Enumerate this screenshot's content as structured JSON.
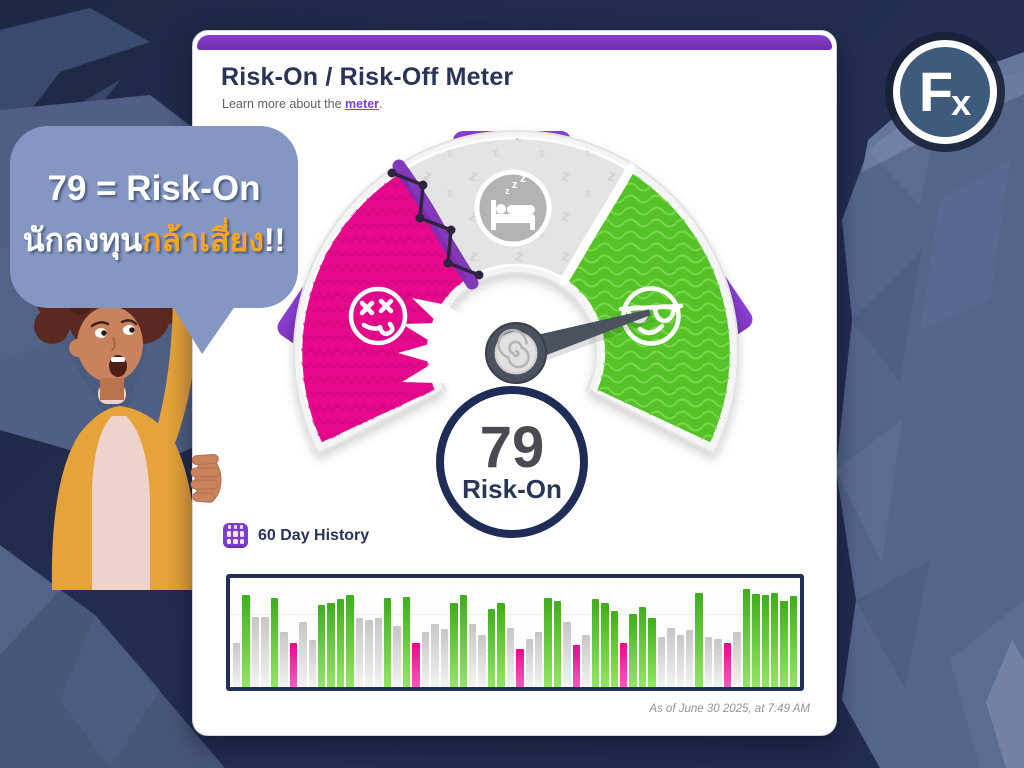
{
  "theme": {
    "background_navy": "#232e52",
    "accent_purple": "#7a35bd",
    "risk_off_pink": "#e7098c",
    "neutral_gray": "#e4e4e4",
    "risk_on_green": "#55c327",
    "circle_navy": "#1f2c55",
    "bubble_blue": "#8497c2",
    "bubble_orange": "#f5a623"
  },
  "logo": {
    "f": "F",
    "x": "x"
  },
  "bubble": {
    "line1": "79 = Risk-On",
    "line2_white": "นักลงทุน",
    "line2_orange": "กล้าเสี่ยง",
    "line2_suffix": "!!"
  },
  "card": {
    "title": "Risk-On / Risk-Off Meter",
    "subtitle_prefix": "Learn more about the ",
    "subtitle_link": "meter",
    "subtitle_suffix": ".",
    "footer": "As of June 30 2025, at 7:49 AM"
  },
  "gauge": {
    "value": 79,
    "state_label": "Risk-On",
    "min": 0,
    "max": 100,
    "z_glyph": "z",
    "segments": [
      {
        "label": "Risk-Off",
        "color": "#e7098c"
      },
      {
        "label": "Neutral",
        "color": "#e4e4e4"
      },
      {
        "label": "Risk-On",
        "color": "#55c327"
      }
    ]
  },
  "history": {
    "label": "60 Day History",
    "chart_data": {
      "type": "bar",
      "title": "60 Day History",
      "ylim": [
        0,
        100
      ],
      "grid": true,
      "colors": {
        "risk-on": "#53c226",
        "neutral": "#cfcfcf",
        "risk-off": "#e7098c"
      },
      "states": [
        "neutral",
        "risk-on",
        "neutral",
        "neutral",
        "risk-on",
        "neutral",
        "risk-off",
        "neutral",
        "neutral",
        "risk-on",
        "risk-on",
        "risk-on",
        "risk-on",
        "neutral",
        "neutral",
        "neutral",
        "risk-on",
        "neutral",
        "risk-on",
        "risk-off",
        "neutral",
        "neutral",
        "neutral",
        "risk-on",
        "risk-on",
        "neutral",
        "neutral",
        "risk-on",
        "risk-on",
        "neutral",
        "risk-off",
        "neutral",
        "neutral",
        "risk-on",
        "risk-on",
        "neutral",
        "risk-off",
        "neutral",
        "risk-on",
        "risk-on",
        "risk-on",
        "risk-off",
        "risk-on",
        "risk-on",
        "risk-on",
        "neutral",
        "neutral",
        "neutral",
        "neutral",
        "risk-on",
        "neutral",
        "neutral",
        "risk-off",
        "neutral",
        "risk-on",
        "risk-on",
        "risk-on",
        "risk-on",
        "risk-on",
        "risk-on"
      ],
      "values": [
        42,
        88,
        67,
        67,
        85,
        52,
        42,
        62,
        45,
        78,
        80,
        84,
        88,
        66,
        64,
        66,
        85,
        58,
        86,
        42,
        52,
        60,
        55,
        80,
        88,
        60,
        50,
        74,
        80,
        56,
        36,
        46,
        52,
        85,
        82,
        62,
        40,
        50,
        84,
        80,
        72,
        42,
        70,
        76,
        66,
        48,
        56,
        50,
        54,
        90,
        48,
        46,
        42,
        52,
        93,
        89,
        88,
        90,
        82,
        87
      ]
    }
  }
}
